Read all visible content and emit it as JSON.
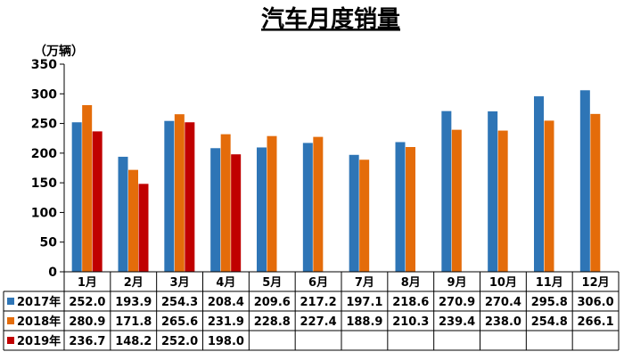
{
  "chart_data": {
    "type": "bar",
    "title": "汽车月度销量",
    "unit_label": "（万辆）",
    "categories": [
      "1月",
      "2月",
      "3月",
      "4月",
      "5月",
      "6月",
      "7月",
      "8月",
      "9月",
      "10月",
      "11月",
      "12月"
    ],
    "ylim": [
      0,
      350
    ],
    "yticks": [
      "0",
      "50",
      "100",
      "150",
      "200",
      "250",
      "300",
      "350"
    ],
    "series": [
      {
        "name": "2017年",
        "color": "#2e75b6",
        "values": [
          252.0,
          193.9,
          254.3,
          208.4,
          209.6,
          217.2,
          197.1,
          218.6,
          270.9,
          270.4,
          295.8,
          306.0
        ],
        "labels": [
          "252.0",
          "193.9",
          "254.3",
          "208.4",
          "209.6",
          "217.2",
          "197.1",
          "218.6",
          "270.9",
          "270.4",
          "295.8",
          "306.0"
        ]
      },
      {
        "name": "2018年",
        "color": "#e46c0a",
        "values": [
          280.9,
          171.8,
          265.6,
          231.9,
          228.8,
          227.4,
          188.9,
          210.3,
          239.4,
          238.0,
          254.8,
          266.1
        ],
        "labels": [
          "280.9",
          "171.8",
          "265.6",
          "231.9",
          "228.8",
          "227.4",
          "188.9",
          "210.3",
          "239.4",
          "238.0",
          "254.8",
          "266.1"
        ]
      },
      {
        "name": "2019年",
        "color": "#c00000",
        "values": [
          236.7,
          148.2,
          252.0,
          198.0,
          null,
          null,
          null,
          null,
          null,
          null,
          null,
          null
        ],
        "labels": [
          "236.7",
          "148.2",
          "252.0",
          "198.0",
          "",
          "",
          "",
          "",
          "",
          "",
          "",
          ""
        ]
      }
    ],
    "grid": false,
    "legend": "data-table"
  }
}
